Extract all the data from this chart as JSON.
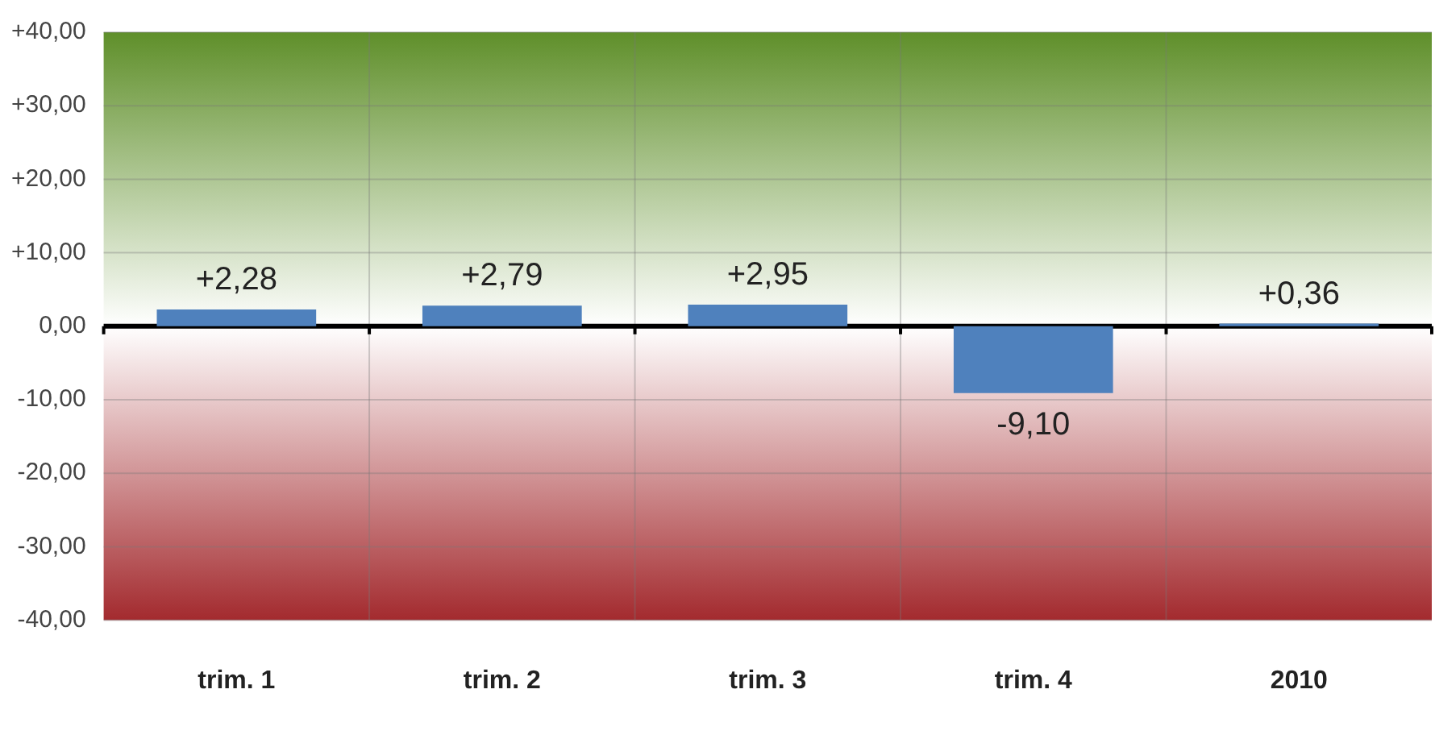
{
  "chart_data": {
    "type": "bar",
    "categories": [
      "trim. 1",
      "trim. 2",
      "trim. 3",
      "trim. 4",
      "2010"
    ],
    "values": [
      2.28,
      2.79,
      2.95,
      -9.1,
      0.36
    ],
    "color": "#4f81bd",
    "value_labels": [
      "+2,28",
      "+2,79",
      "+2,95",
      "-9,10",
      "+0,36"
    ],
    "ylim": [
      -40,
      40
    ],
    "yticks": [
      {
        "value": -40,
        "label": "-40,00"
      },
      {
        "value": -30,
        "label": "-30,00"
      },
      {
        "value": -20,
        "label": "-20,00"
      },
      {
        "value": -10,
        "label": "-10,00"
      },
      {
        "value": 0,
        "label": "0,00"
      },
      {
        "value": 10,
        "label": "+10,00"
      },
      {
        "value": 20,
        "label": "+20,00"
      },
      {
        "value": 30,
        "label": "+30,00"
      },
      {
        "value": 40,
        "label": "+40,00"
      }
    ],
    "bands": [
      {
        "axis": "y",
        "from": 0,
        "to": 40,
        "color": "#5f8f2a"
      },
      {
        "axis": "y",
        "from": -40,
        "to": 0,
        "color": "#a32a2e"
      }
    ],
    "grid": true,
    "legend": false
  }
}
